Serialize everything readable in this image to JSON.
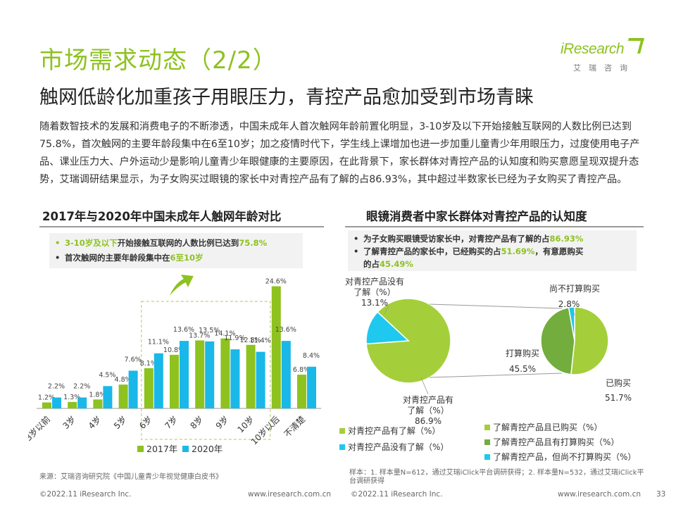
{
  "header": {
    "title": "市场需求动态（2/2）",
    "subtitle": "触网低龄化加重孩子用眼压力，青控产品愈加受到市场青睐",
    "logo_text": "iResearch",
    "logo_cn": "艾瑞咨询"
  },
  "intro": "随着数智技术的发展和消费电子的不断渗透，中国未成年人首次触网年龄前置化明显，3-10岁及以下开始接触互联网的人数比例已达到75.8%，首次触网的主要年龄段集中在6至10岁；加之疫情时代下，学生线上课增加也进一步加重儿童青少年用眼压力，过度使用电子产品、课业压力大、户外运动少是影响儿童青少年眼健康的主要原因，在此背景下，家长群体对青控产品的认知度和购买意愿呈现双提升态势，艾瑞调研结果显示，为子女购买过眼镜的家长中对青控产品有了解的占86.93%，其中超过半数家长已经为子女购买了青控产品。",
  "left": {
    "title": "2017年与2020年中国未成年人触网年龄对比",
    "notes": [
      {
        "hl": "3-10岁及以下",
        "text": "开始接触互联网的人数比例已达到",
        "hl2": "75.8%"
      },
      {
        "text": "首次触网的主要年龄段集中在",
        "hl": "6至10岁"
      }
    ],
    "source": "来源：艾瑞咨询研究院《中国儿童青少年视觉健康白皮书》"
  },
  "right": {
    "title": "眼镜消费者中家长群体对青控产品的认知度",
    "notes": [
      {
        "text": "为子女购买眼镜受访家长中，对青控产品有了解的占",
        "hl": "86.93%"
      },
      {
        "text": "了解青控产品的家长中，已经购买的占",
        "hl": "51.69%",
        "text2": "，有意愿购买"
      },
      {
        "text": "的占",
        "hl": "45.49%"
      }
    ],
    "source": "样本：1. 样本量N=612，通过艾瑞iClick平台调研获得；2. 样本量N=532，通过艾瑞iClick平台调研获得"
  },
  "chart_data": [
    {
      "type": "bar",
      "title": "2017年与2020年中国未成年人触网年龄对比",
      "categories": [
        "3岁以前",
        "3岁",
        "4岁",
        "5岁",
        "6岁",
        "7岁",
        "8岁",
        "9岁",
        "10岁",
        "10岁以后",
        "不清楚"
      ],
      "series": [
        {
          "name": "2017年",
          "color": "#8dc21f",
          "values": [
            1.2,
            1.3,
            1.8,
            4.8,
            8.1,
            10.8,
            13.7,
            14.1,
            12.8,
            24.6,
            6.8
          ]
        },
        {
          "name": "2020年",
          "color": "#1ab8e8",
          "values": [
            2.2,
            2.2,
            4.5,
            7.6,
            11.1,
            13.6,
            13.5,
            11.9,
            11.4,
            13.6,
            8.4
          ]
        }
      ],
      "unit": "%",
      "highlight_range": [
        "6岁",
        "10岁"
      ]
    },
    {
      "type": "pie",
      "slices": [
        {
          "label": "对青控产品有了解（%）",
          "value": 86.9,
          "color": "#a4cf3a"
        },
        {
          "label": "对青控产品没有了解（%）",
          "value": 13.1,
          "color": "#1ec8ee"
        }
      ],
      "callouts": [
        "对青控产品有了解（%）86.9%",
        "对青控产品没有了解（%）13.1%"
      ]
    },
    {
      "type": "pie",
      "slices": [
        {
          "label": "了解青控产品且已购买（%）",
          "value": 51.7,
          "color": "#a4cf3a"
        },
        {
          "label": "了解青控产品且有打算购买（%）",
          "value": 45.5,
          "color": "#73ad3d"
        },
        {
          "label": "了解青控产品，但尚不打算购买（%）",
          "value": 2.8,
          "color": "#1ec8ee"
        }
      ],
      "callouts": [
        {
          "name": "已购买",
          "pct": "51.7%"
        },
        {
          "name": "打算购买",
          "pct": "45.5%"
        },
        {
          "name": "尚不打算购买",
          "pct": "2.8%"
        }
      ]
    }
  ],
  "footer": {
    "left_copyright": "©2022.11 iResearch Inc.",
    "left_url": "www.iresearch.com.cn",
    "right_copyright": "©2022.11 iResearch Inc.",
    "right_url": "www.iresearch.com.cn",
    "page": "33"
  }
}
